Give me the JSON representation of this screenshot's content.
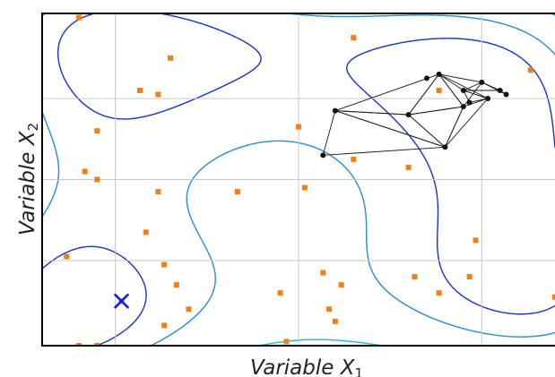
{
  "chart_data": {
    "type": "scatter",
    "title": "",
    "xlabel": "Variable X",
    "xlabel_sub": "1",
    "ylabel": "Variable X",
    "ylabel_sub": "2",
    "xlim": [
      -4.2,
      4.2
    ],
    "ylim": [
      -4.1,
      4.1
    ],
    "grid": true,
    "gridlines_x": [
      -3,
      0,
      3
    ],
    "gridlines_y": [
      -2,
      0,
      2
    ],
    "contour_levels": [
      60,
      140,
      300,
      560,
      820,
      1080,
      1340
    ],
    "contour_colors": [
      "#1a32c8",
      "#2a8ad2",
      "#25b7cf",
      "#55d2a8",
      "#a0dc70",
      "#e8e045",
      "#f0a020"
    ],
    "contour_function": "Himmelblau",
    "sample_color": "#f07f1a",
    "samples": [
      [
        -3.6,
        4.0
      ],
      [
        -2.1,
        3.0
      ],
      [
        -2.6,
        2.2
      ],
      [
        -2.3,
        2.1
      ],
      [
        -3.3,
        1.2
      ],
      [
        0.9,
        3.5
      ],
      [
        2.3,
        2.2
      ],
      [
        3.8,
        2.7
      ],
      [
        4.3,
        1.5
      ],
      [
        -2.3,
        -0.3
      ],
      [
        -1.0,
        -0.3
      ],
      [
        0.0,
        1.3
      ],
      [
        0.9,
        0.5
      ],
      [
        0.1,
        -0.2
      ],
      [
        1.8,
        0.3
      ],
      [
        -3.5,
        0.2
      ],
      [
        -3.3,
        0.0
      ],
      [
        -2.5,
        -1.3
      ],
      [
        -3.8,
        -1.9
      ],
      [
        -2.2,
        -2.1
      ],
      [
        -2.0,
        -2.6
      ],
      [
        -1.8,
        -3.2
      ],
      [
        0.5,
        -3.2
      ],
      [
        0.4,
        -2.3
      ],
      [
        0.7,
        -2.6
      ],
      [
        1.9,
        -2.4
      ],
      [
        2.8,
        -2.4
      ],
      [
        -0.3,
        -2.8
      ],
      [
        0.6,
        -3.5
      ],
      [
        -2.2,
        -3.6
      ],
      [
        2.3,
        -2.8
      ],
      [
        2.9,
        -1.5
      ],
      [
        -0.2,
        -4.0
      ],
      [
        -3.6,
        -4.1
      ],
      [
        -3.3,
        -4.1
      ],
      [
        4.2,
        -2.9
      ],
      [
        -2.9,
        -3.0
      ]
    ],
    "marker": {
      "label": "x",
      "x": -2.9,
      "y": -3.0,
      "color": "#1a1ae6"
    },
    "simplex_points": [
      [
        0.6,
        1.7
      ],
      [
        2.3,
        2.6
      ],
      [
        2.7,
        2.2
      ],
      [
        3.0,
        2.4
      ],
      [
        2.8,
        1.9
      ],
      [
        1.8,
        1.6
      ],
      [
        2.1,
        2.5
      ],
      [
        3.3,
        2.2
      ],
      [
        3.4,
        2.1
      ],
      [
        2.7,
        1.8
      ],
      [
        0.4,
        0.6
      ],
      [
        2.4,
        0.8
      ],
      [
        3.1,
        2.0
      ]
    ],
    "simplex_triangles": [
      [
        [
          0.6,
          1.7
        ],
        [
          0.4,
          0.6
        ],
        [
          2.4,
          0.8
        ]
      ],
      [
        [
          0.6,
          1.7
        ],
        [
          2.4,
          0.8
        ],
        [
          1.8,
          1.6
        ]
      ],
      [
        [
          0.6,
          1.7
        ],
        [
          2.3,
          2.6
        ],
        [
          1.8,
          1.6
        ]
      ],
      [
        [
          2.3,
          2.6
        ],
        [
          1.8,
          1.6
        ],
        [
          2.7,
          1.8
        ]
      ],
      [
        [
          2.3,
          2.6
        ],
        [
          2.7,
          1.8
        ],
        [
          3.0,
          2.4
        ]
      ],
      [
        [
          2.3,
          2.6
        ],
        [
          2.7,
          2.2
        ],
        [
          3.1,
          2.0
        ]
      ],
      [
        [
          2.7,
          2.2
        ],
        [
          3.1,
          2.0
        ],
        [
          2.8,
          1.9
        ]
      ],
      [
        [
          2.7,
          2.2
        ],
        [
          3.0,
          2.4
        ],
        [
          3.3,
          2.2
        ]
      ],
      [
        [
          3.0,
          2.4
        ],
        [
          3.3,
          2.2
        ],
        [
          3.4,
          2.1
        ]
      ],
      [
        [
          1.8,
          1.6
        ],
        [
          2.4,
          0.8
        ],
        [
          2.7,
          1.8
        ]
      ],
      [
        [
          2.4,
          0.8
        ],
        [
          2.7,
          1.8
        ],
        [
          3.1,
          2.0
        ]
      ]
    ]
  }
}
